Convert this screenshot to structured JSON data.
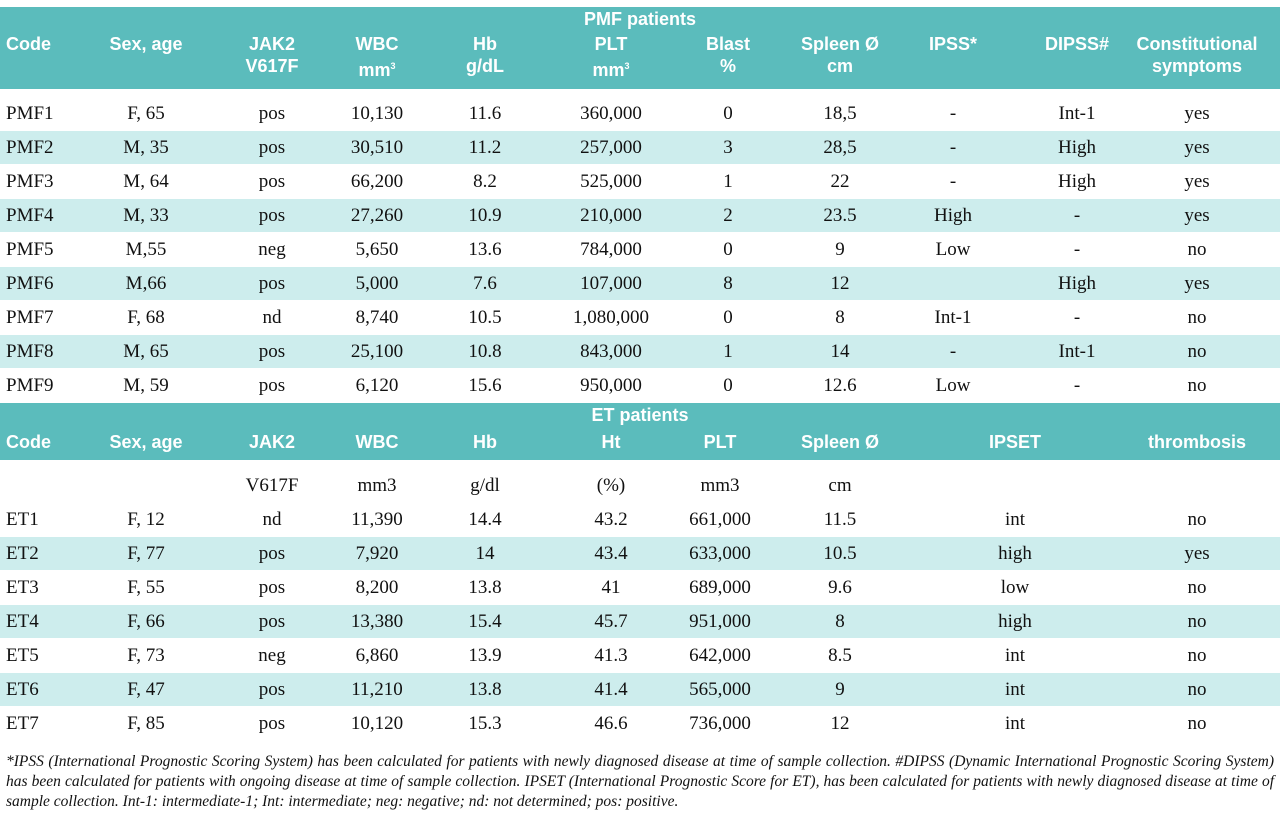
{
  "pmf": {
    "title": "PMF patients",
    "headers": [
      {
        "l1": "Code",
        "l2": ""
      },
      {
        "l1": "Sex, age",
        "l2": ""
      },
      {
        "l1": "JAK2",
        "l2": "V617F"
      },
      {
        "l1": "WBC",
        "l2": "mm",
        "sup": "3"
      },
      {
        "l1": "Hb",
        "l2": "g/dL"
      },
      {
        "l1": "PLT",
        "l2": "mm",
        "sup": "3"
      },
      {
        "l1": "Blast",
        "l2": "%"
      },
      {
        "l1": "Spleen Ø",
        "l2": "cm"
      },
      {
        "l1": "IPSS*",
        "l2": ""
      },
      {
        "l1": "DIPSS#",
        "l2": ""
      },
      {
        "l1": "Constitutional",
        "l2": "symptoms"
      }
    ],
    "rows": [
      [
        "PMF1",
        "F, 65",
        "pos",
        "10,130",
        "11.6",
        "360,000",
        "0",
        "18,5",
        "-",
        "Int-1",
        "yes"
      ],
      [
        "PMF2",
        "M, 35",
        "pos",
        "30,510",
        "11.2",
        "257,000",
        "3",
        "28,5",
        "-",
        "High",
        "yes"
      ],
      [
        "PMF3",
        "M, 64",
        "pos",
        "66,200",
        "8.2",
        "525,000",
        "1",
        "22",
        "-",
        "High",
        "yes"
      ],
      [
        "PMF4",
        "M, 33",
        "pos",
        "27,260",
        "10.9",
        "210,000",
        "2",
        "23.5",
        "High",
        "-",
        "yes"
      ],
      [
        "PMF5",
        "M,55",
        "neg",
        "5,650",
        "13.6",
        "784,000",
        "0",
        "9",
        "Low",
        "-",
        "no"
      ],
      [
        "PMF6",
        "M,66",
        "pos",
        "5,000",
        "7.6",
        "107,000",
        "8",
        "12",
        "",
        "High",
        "yes"
      ],
      [
        "PMF7",
        "F, 68",
        "nd",
        "8,740",
        "10.5",
        "1,080,000",
        "0",
        "8",
        "Int-1",
        "-",
        "no"
      ],
      [
        "PMF8",
        "M, 65",
        "pos",
        "25,100",
        "10.8",
        "843,000",
        "1",
        "14",
        "-",
        "Int-1",
        "no"
      ],
      [
        "PMF9",
        "M, 59",
        "pos",
        "6,120",
        "15.6",
        "950,000",
        "0",
        "12.6",
        "Low",
        "-",
        "no"
      ]
    ]
  },
  "et": {
    "title": "ET patients",
    "headers": [
      "Code",
      "Sex, age",
      "JAK2",
      "WBC",
      "Hb",
      "Ht",
      "PLT",
      "Spleen Ø",
      "IPSET",
      "thrombosis"
    ],
    "subheaders": [
      "",
      "",
      "V617F",
      "mm3",
      "g/dl",
      "(%)",
      "mm3",
      "cm",
      "",
      ""
    ],
    "rows": [
      [
        "ET1",
        "F, 12",
        "nd",
        "11,390",
        "14.4",
        "43.2",
        "661,000",
        "11.5",
        "int",
        "no"
      ],
      [
        "ET2",
        "F, 77",
        "pos",
        "7,920",
        "14",
        "43.4",
        "633,000",
        "10.5",
        "high",
        "yes"
      ],
      [
        "ET3",
        "F, 55",
        "pos",
        "8,200",
        "13.8",
        "41",
        "689,000",
        "9.6",
        "low",
        "no"
      ],
      [
        "ET4",
        "F, 66",
        "pos",
        "13,380",
        "15.4",
        "45.7",
        "951,000",
        "8",
        "high",
        "no"
      ],
      [
        "ET5",
        "F, 73",
        "neg",
        "6,860",
        "13.9",
        "41.3",
        "642,000",
        "8.5",
        "int",
        "no"
      ],
      [
        "ET6",
        "F, 47",
        "pos",
        "11,210",
        "13.8",
        "41.4",
        "565,000",
        "9",
        "int",
        "no"
      ],
      [
        "ET7",
        "F, 85",
        "pos",
        "10,120",
        "15.3",
        "46.6",
        "736,000",
        "12",
        "int",
        "no"
      ]
    ]
  },
  "footnote": "*IPSS (International Prognostic Scoring System) has been calculated for patients with newly diagnosed disease at time of sample collection. #DIPSS (Dynamic International Prognostic Scoring System) has been calculated for patients with ongoing disease at time of sample collection. IPSET (International Prognostic Score for ET), has been calculated for patients with newly diagnosed disease at time of sample collection. Int-1: intermediate-1; Int: intermediate; neg: negative; nd: not determined; pos: positive."
}
